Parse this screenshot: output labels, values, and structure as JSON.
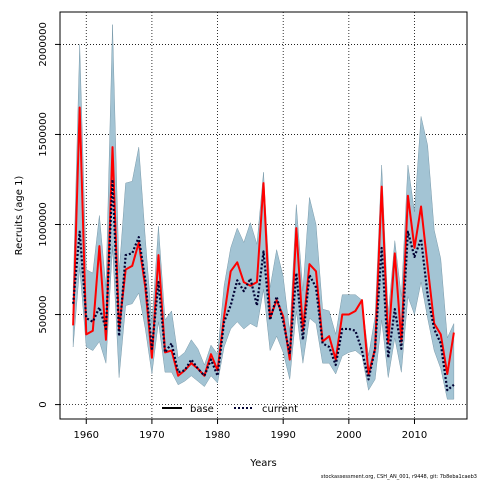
{
  "chart_data": {
    "type": "line",
    "xlabel": "Years",
    "ylabel": "Recruits (age 1)",
    "xlim": [
      1956,
      2018
    ],
    "ylim": [
      -80000,
      2180000
    ],
    "x_ticks": [
      1960,
      1970,
      1980,
      1990,
      2000,
      2010
    ],
    "y_ticks": [
      0,
      500000,
      1000000,
      1500000,
      2000000
    ],
    "grid": true,
    "legend_position": "bottom-center",
    "x": [
      1958,
      1959,
      1960,
      1961,
      1962,
      1963,
      1964,
      1965,
      1966,
      1967,
      1968,
      1969,
      1970,
      1971,
      1972,
      1973,
      1974,
      1975,
      1976,
      1977,
      1978,
      1979,
      1980,
      1981,
      1982,
      1983,
      1984,
      1985,
      1986,
      1987,
      1988,
      1989,
      1990,
      1991,
      1992,
      1993,
      1994,
      1995,
      1996,
      1997,
      1998,
      1999,
      2000,
      2001,
      2002,
      2003,
      2004,
      2005,
      2006,
      2007,
      2008,
      2009,
      2010,
      2011,
      2012,
      2013,
      2014,
      2015,
      2016
    ],
    "series": [
      {
        "name": "base",
        "color": "#ff0000",
        "style": "solid",
        "values": [
          440000,
          1650000,
          390000,
          410000,
          880000,
          360000,
          1430000,
          420000,
          750000,
          770000,
          900000,
          650000,
          260000,
          830000,
          290000,
          300000,
          160000,
          190000,
          230000,
          200000,
          160000,
          280000,
          190000,
          490000,
          740000,
          790000,
          680000,
          660000,
          680000,
          1230000,
          480000,
          580000,
          490000,
          250000,
          980000,
          410000,
          780000,
          740000,
          350000,
          380000,
          250000,
          500000,
          500000,
          520000,
          580000,
          170000,
          310000,
          1210000,
          340000,
          840000,
          350000,
          1160000,
          870000,
          1100000,
          770000,
          450000,
          390000,
          170000,
          400000
        ]
      },
      {
        "name": "current",
        "color": "#000033",
        "style": "dotted",
        "values": [
          560000,
          960000,
          480000,
          460000,
          540000,
          420000,
          1250000,
          380000,
          830000,
          840000,
          930000,
          690000,
          310000,
          680000,
          290000,
          340000,
          180000,
          190000,
          250000,
          200000,
          160000,
          250000,
          160000,
          460000,
          550000,
          690000,
          630000,
          700000,
          550000,
          850000,
          470000,
          600000,
          460000,
          280000,
          730000,
          360000,
          720000,
          650000,
          340000,
          320000,
          220000,
          420000,
          420000,
          410000,
          300000,
          140000,
          310000,
          870000,
          260000,
          530000,
          310000,
          960000,
          820000,
          920000,
          610000,
          420000,
          340000,
          80000,
          110000
        ]
      },
      {
        "name": "",
        "type": "band",
        "color": "#a3c4d4",
        "lower": [
          320000,
          760000,
          320000,
          300000,
          350000,
          230000,
          880000,
          150000,
          550000,
          560000,
          620000,
          420000,
          170000,
          460000,
          180000,
          180000,
          110000,
          130000,
          160000,
          130000,
          100000,
          160000,
          120000,
          320000,
          420000,
          460000,
          420000,
          450000,
          430000,
          640000,
          300000,
          380000,
          290000,
          140000,
          520000,
          230000,
          480000,
          450000,
          230000,
          230000,
          170000,
          270000,
          290000,
          300000,
          270000,
          80000,
          140000,
          470000,
          150000,
          370000,
          180000,
          600000,
          500000,
          680000,
          480000,
          300000,
          200000,
          30000,
          30000
        ],
        "upper": [
          640000,
          2000000,
          750000,
          730000,
          1050000,
          650000,
          2110000,
          730000,
          1230000,
          1240000,
          1430000,
          920000,
          450000,
          990000,
          470000,
          520000,
          260000,
          290000,
          360000,
          310000,
          220000,
          330000,
          280000,
          660000,
          870000,
          980000,
          900000,
          1010000,
          890000,
          1290000,
          650000,
          860000,
          710000,
          400000,
          1110000,
          630000,
          1150000,
          1000000,
          530000,
          520000,
          390000,
          610000,
          610000,
          610000,
          580000,
          270000,
          490000,
          1330000,
          500000,
          910000,
          600000,
          1330000,
          1070000,
          1600000,
          1440000,
          970000,
          810000,
          370000,
          450000
        ]
      }
    ]
  },
  "footnote": "stockassessment.org, CSH_AN_001, r9448, git: 7b8eba1caeb3"
}
